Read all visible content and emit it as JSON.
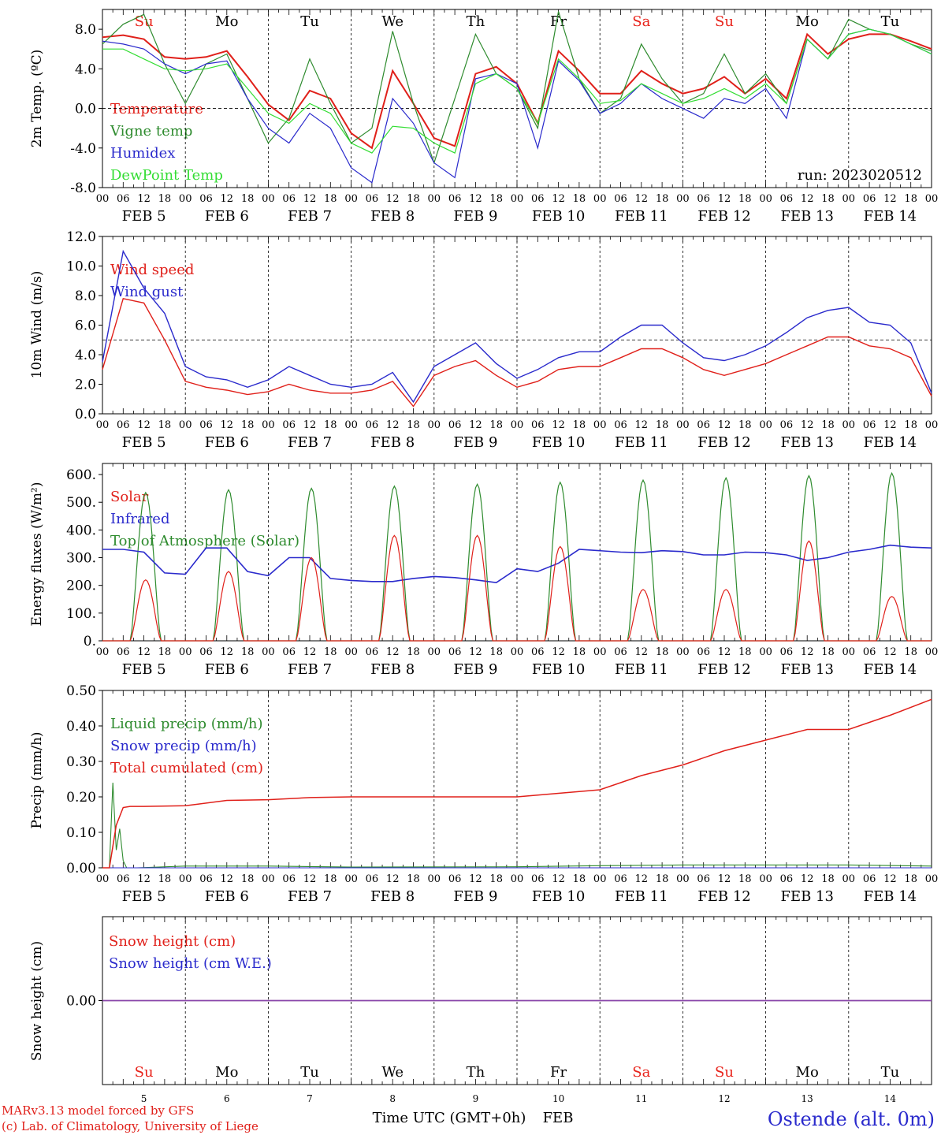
{
  "colors": {
    "temperature": "#e0201a",
    "vigne": "#2e8b2e",
    "humidex": "#2a2acc",
    "dewpoint": "#33dd33",
    "weekend": "#e8221a",
    "weekday": "#000000",
    "snow_line": "#8844aa"
  },
  "run_label": "run: 2023020512",
  "days": {
    "names": [
      "Su",
      "Mo",
      "Tu",
      "We",
      "Th",
      "Fr",
      "Sa",
      "Su",
      "Mo",
      "Tu"
    ],
    "weekend": [
      true,
      false,
      false,
      false,
      false,
      false,
      true,
      true,
      false,
      false
    ],
    "dates": [
      "FEB  5",
      "FEB  6",
      "FEB  7",
      "FEB  8",
      "FEB  9",
      "FEB 10",
      "FEB 11",
      "FEB 12",
      "FEB 13",
      "FEB 14"
    ],
    "bottom_numbers": [
      "5",
      "6",
      "7",
      "8",
      "9",
      "10",
      "11",
      "12",
      "13",
      "14"
    ],
    "hour_ticks": [
      "00",
      "06",
      "12",
      "18"
    ],
    "end_tick": "00"
  },
  "footer": {
    "model": "MARv3.13 model forced by GFS",
    "lab": "(c) Lab. of Climatology, University of Liege",
    "xlabel": "Time UTC (GMT+0h)",
    "month": "FEB",
    "station": "Ostende (alt. 0m)"
  },
  "chart_data": [
    {
      "type": "line",
      "ylabel": "2m Temp. (ºC)",
      "ylim": [
        -8,
        10
      ],
      "yticks": [
        "-8.0",
        "-4.0",
        "0.0",
        "4.0",
        "8.0"
      ],
      "yticks_values": [
        -8,
        -4,
        0,
        4,
        8
      ],
      "reference_line": 0,
      "x_unit": "hours since FEB 5 00 UTC",
      "x": [
        0,
        6,
        12,
        18,
        24,
        30,
        36,
        42,
        48,
        54,
        60,
        66,
        72,
        78,
        84,
        90,
        96,
        102,
        108,
        114,
        120,
        126,
        132,
        138,
        144,
        150,
        156,
        162,
        168,
        174,
        180,
        186,
        192,
        198,
        204,
        210,
        216,
        222,
        228,
        234,
        240
      ],
      "series": [
        {
          "name": "Temperature",
          "values": [
            7.2,
            7.4,
            7.0,
            5.2,
            5.0,
            5.2,
            5.8,
            3.2,
            0.4,
            -1.2,
            1.8,
            1.0,
            -2.5,
            -4.0,
            3.8,
            0.5,
            -3.0,
            -3.8,
            3.5,
            4.2,
            2.5,
            -1.5,
            5.8,
            3.8,
            1.5,
            1.5,
            3.8,
            2.5,
            1.5,
            2.0,
            3.2,
            1.5,
            3.0,
            1.0,
            7.5,
            5.5,
            7.0,
            7.5,
            7.5,
            6.8,
            6.0
          ]
        },
        {
          "name": "Vigne temp",
          "values": [
            6.5,
            8.5,
            9.5,
            4.5,
            0.5,
            4.5,
            5.5,
            1.0,
            -3.5,
            -1.0,
            5.0,
            0.5,
            -3.5,
            -2.0,
            7.8,
            0.5,
            -5.5,
            1.0,
            7.5,
            3.5,
            2.0,
            -2.0,
            9.8,
            3.0,
            -0.5,
            1.0,
            6.5,
            3.0,
            0.5,
            1.5,
            5.5,
            1.5,
            3.5,
            0.5,
            7.0,
            5.0,
            9.0,
            8.0,
            7.5,
            6.5,
            5.8
          ]
        },
        {
          "name": "Humidex",
          "values": [
            6.8,
            6.5,
            6.0,
            4.5,
            3.5,
            4.5,
            4.8,
            1.0,
            -2.0,
            -3.5,
            -0.5,
            -2.0,
            -6.0,
            -7.5,
            1.0,
            -1.5,
            -5.5,
            -7.0,
            3.0,
            3.5,
            2.5,
            -4.0,
            4.8,
            2.8,
            -0.5,
            0.5,
            2.5,
            1.0,
            0.0,
            -1.0,
            1.0,
            0.5,
            2.0,
            -1.0,
            7.0,
            5.0,
            7.5,
            8.0,
            7.5,
            6.5,
            5.5
          ]
        },
        {
          "name": "DewPoint Temp",
          "values": [
            6.0,
            6.0,
            5.0,
            4.0,
            3.8,
            4.0,
            4.5,
            2.0,
            -0.5,
            -1.5,
            0.5,
            -0.5,
            -3.5,
            -4.5,
            -1.8,
            -2.0,
            -3.5,
            -4.5,
            2.5,
            3.5,
            2.0,
            -1.5,
            5.0,
            3.0,
            0.5,
            0.8,
            2.5,
            1.5,
            0.5,
            1.0,
            2.0,
            1.0,
            2.5,
            0.5,
            7.0,
            5.0,
            7.5,
            8.0,
            7.5,
            6.5,
            5.5
          ]
        }
      ]
    },
    {
      "type": "line",
      "ylabel": "10m Wind (m/s)",
      "ylim": [
        0,
        12
      ],
      "yticks": [
        "0.0",
        "2.0",
        "4.0",
        "6.0",
        "8.0",
        "10.0",
        "12.0"
      ],
      "yticks_values": [
        0,
        2,
        4,
        6,
        8,
        10,
        12
      ],
      "reference_line": 5,
      "x_unit": "hours since FEB 5 00 UTC",
      "x": [
        0,
        6,
        12,
        18,
        24,
        30,
        36,
        42,
        48,
        54,
        60,
        66,
        72,
        78,
        84,
        90,
        96,
        102,
        108,
        114,
        120,
        126,
        132,
        138,
        144,
        150,
        156,
        162,
        168,
        174,
        180,
        186,
        192,
        198,
        204,
        210,
        216,
        222,
        228,
        234,
        240
      ],
      "series": [
        {
          "name": "Wind speed",
          "values": [
            3.0,
            7.8,
            7.5,
            5.0,
            2.2,
            1.8,
            1.6,
            1.3,
            1.5,
            2.0,
            1.6,
            1.4,
            1.4,
            1.6,
            2.2,
            0.5,
            2.6,
            3.2,
            3.6,
            2.6,
            1.8,
            2.2,
            3.0,
            3.2,
            3.2,
            3.8,
            4.4,
            4.4,
            3.8,
            3.0,
            2.6,
            3.0,
            3.4,
            4.0,
            4.6,
            5.2,
            5.2,
            4.6,
            4.4,
            3.8,
            1.2
          ]
        },
        {
          "name": "Wind gust",
          "values": [
            3.5,
            11.0,
            8.5,
            6.8,
            3.2,
            2.5,
            2.3,
            1.8,
            2.3,
            3.2,
            2.6,
            2.0,
            1.8,
            2.0,
            2.8,
            0.8,
            3.2,
            4.0,
            4.8,
            3.4,
            2.4,
            3.0,
            3.8,
            4.2,
            4.2,
            5.2,
            6.0,
            6.0,
            4.8,
            3.8,
            3.6,
            4.0,
            4.6,
            5.5,
            6.5,
            7.0,
            7.2,
            6.2,
            6.0,
            4.8,
            1.4
          ]
        }
      ]
    },
    {
      "type": "line",
      "ylabel": "Energy fluxes (W/m²)",
      "ylim": [
        0,
        640
      ],
      "yticks": [
        "0.",
        "100.",
        "200.",
        "300.",
        "400.",
        "500.",
        "600."
      ],
      "yticks_values": [
        0,
        100,
        200,
        300,
        400,
        500,
        600
      ],
      "x_unit": "hours since FEB 5 00 UTC",
      "daylight_hours": [
        8,
        17
      ],
      "series": [
        {
          "name": "Solar",
          "daily_peak": [
            220,
            250,
            300,
            380,
            380,
            340,
            185,
            185,
            360,
            160
          ]
        },
        {
          "name": "Infrared",
          "x": [
            0,
            6,
            12,
            18,
            24,
            30,
            36,
            42,
            48,
            54,
            60,
            66,
            72,
            78,
            84,
            90,
            96,
            102,
            108,
            114,
            120,
            126,
            132,
            138,
            144,
            150,
            156,
            162,
            168,
            174,
            180,
            186,
            192,
            198,
            204,
            210,
            216,
            222,
            228,
            234,
            240
          ],
          "values": [
            330,
            330,
            320,
            245,
            240,
            335,
            335,
            250,
            235,
            300,
            300,
            225,
            218,
            214,
            214,
            225,
            232,
            228,
            220,
            210,
            260,
            250,
            280,
            330,
            325,
            320,
            318,
            325,
            322,
            310,
            310,
            320,
            318,
            310,
            290,
            300,
            320,
            330,
            345,
            338,
            335
          ]
        },
        {
          "name": "Top of Atmosphere (Solar)",
          "daily_peak": [
            535,
            545,
            550,
            558,
            565,
            572,
            580,
            588,
            596,
            605
          ]
        }
      ]
    },
    {
      "type": "line",
      "ylabel": "Precip (mm/h)",
      "ylim": [
        0,
        0.5
      ],
      "yticks": [
        "0.00",
        "0.10",
        "0.20",
        "0.30",
        "0.40",
        "0.50"
      ],
      "yticks_values": [
        0,
        0.1,
        0.2,
        0.3,
        0.4,
        0.5
      ],
      "x_unit": "hours since FEB 5 00 UTC",
      "series": [
        {
          "name": "Liquid precip (mm/h)",
          "x": [
            0,
            2,
            3,
            4,
            5,
            6,
            7,
            8,
            10,
            24,
            48,
            72,
            120,
            144,
            168,
            192,
            216,
            240
          ],
          "values": [
            0,
            0,
            0.24,
            0.05,
            0.11,
            0.02,
            0.0,
            0.0,
            0,
            0.005,
            0.005,
            0.002,
            0.003,
            0.006,
            0.008,
            0.008,
            0.008,
            0.005
          ]
        },
        {
          "name": "Snow precip (mm/h)",
          "x": [
            0,
            240
          ],
          "values": [
            0,
            0
          ]
        },
        {
          "name": "Total cumulated (cm)",
          "x": [
            0,
            2,
            4,
            6,
            8,
            12,
            24,
            36,
            48,
            60,
            72,
            96,
            120,
            132,
            144,
            156,
            168,
            180,
            192,
            204,
            216,
            228,
            240
          ],
          "values": [
            0,
            0,
            0.12,
            0.17,
            0.173,
            0.173,
            0.175,
            0.19,
            0.192,
            0.198,
            0.2,
            0.2,
            0.2,
            0.21,
            0.22,
            0.26,
            0.29,
            0.33,
            0.36,
            0.39,
            0.39,
            0.43,
            0.475
          ]
        }
      ]
    },
    {
      "type": "line",
      "ylabel": "Snow height (cm)",
      "ylim": [
        -1,
        1
      ],
      "yticks": [
        "0.00"
      ],
      "yticks_values": [
        0
      ],
      "x_unit": "hours since FEB 5 00 UTC",
      "x": [
        0,
        240
      ],
      "series": [
        {
          "name": "Snow height (cm)",
          "values": [
            0,
            0
          ]
        },
        {
          "name": "Snow height (cm W.E.)",
          "values": [
            0,
            0
          ]
        }
      ]
    }
  ]
}
